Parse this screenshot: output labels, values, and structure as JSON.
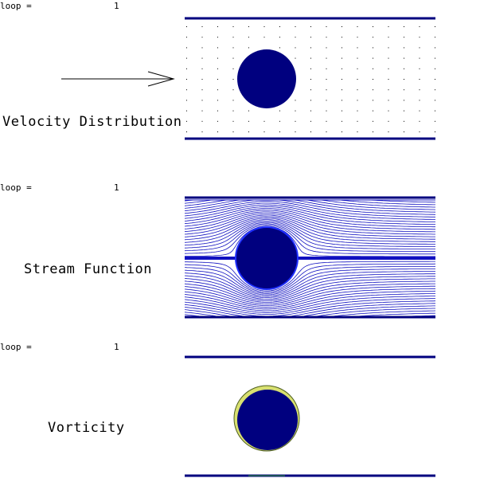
{
  "panels": [
    {
      "loop_label": "loop =",
      "loop_value": "1",
      "title": "Velocity Distribution"
    },
    {
      "loop_label": "loop =",
      "loop_value": "1",
      "title": "Stream Function"
    },
    {
      "loop_label": "loop =",
      "loop_value": "1",
      "title": "Vorticity"
    }
  ]
}
